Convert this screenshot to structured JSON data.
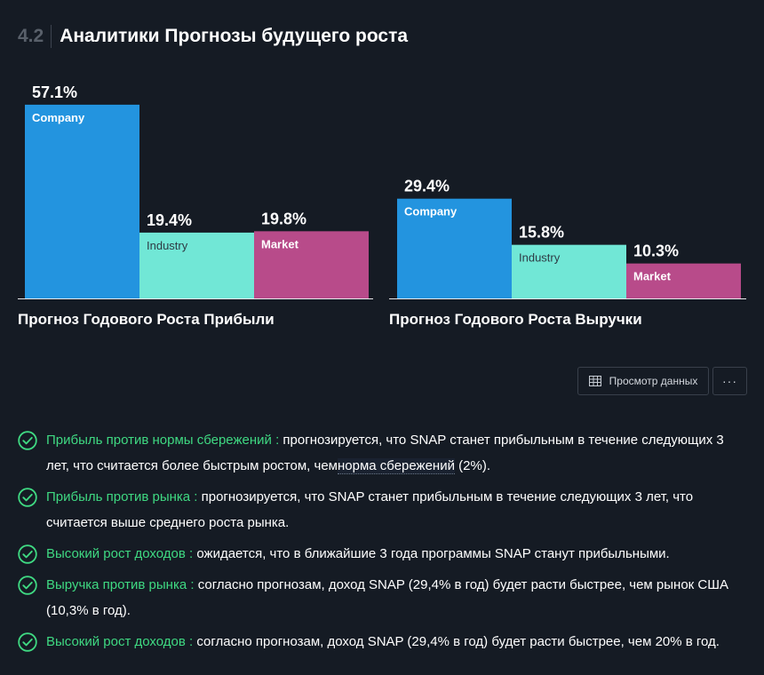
{
  "section": {
    "number": "4.2",
    "title": "Аналитики Прогнозы будущего роста"
  },
  "chart_data": [
    {
      "type": "bar",
      "title": "Прогноз Годового Роста Прибыли",
      "categories": [
        "Company",
        "Industry",
        "Market"
      ],
      "values": [
        57.1,
        19.4,
        19.8
      ],
      "value_labels": [
        "57.1%",
        "19.4%",
        "19.8%"
      ],
      "colors": [
        "#2394df",
        "#71e7d6",
        "#b84b8a"
      ],
      "category_label_colors": [
        "#ffffff",
        "#2e3a44",
        "#ffffff"
      ],
      "grid": false
    },
    {
      "type": "bar",
      "title": "Прогноз Годового Роста Выручки",
      "categories": [
        "Company",
        "Industry",
        "Market"
      ],
      "values": [
        29.4,
        15.8,
        10.3
      ],
      "value_labels": [
        "29.4%",
        "15.8%",
        "10.3%"
      ],
      "colors": [
        "#2394df",
        "#71e7d6",
        "#b84b8a"
      ],
      "category_label_colors": [
        "#ffffff",
        "#2e3a44",
        "#ffffff"
      ],
      "grid": false
    }
  ],
  "toolbar": {
    "view_data_label": "Просмотр данных",
    "more_label": "···"
  },
  "checks": [
    {
      "label": "Прибыль против нормы сбережений :",
      "text": " прогнозируется, что SNAP станет прибыльным в течение следующих 3 лет, что считается более быстрым ростом, чем",
      "link": "норма сбережений",
      "after": " (2%).",
      "icon": "check-circle-icon"
    },
    {
      "label": "Прибыль против рынка :",
      "text": " прогнозируется, что SNAP станет прибыльным в течение следующих 3 лет, что считается выше среднего роста рынка.",
      "icon": "check-circle-icon"
    },
    {
      "label": "Высокий рост доходов :",
      "text": " ожидается, что в ближайшие 3 года программы SNAP станут прибыльными.",
      "icon": "check-circle-icon"
    },
    {
      "label": "Выручка против рынка :",
      "text": " согласно прогнозам, доход SNAP (29,4% в год) будет расти быстрее, чем рынок США (10,3% в год).",
      "icon": "check-circle-icon"
    },
    {
      "label": "Высокий рост доходов :",
      "text": " согласно прогнозам, доход SNAP (29,4% в год) будет расти быстрее, чем 20% в год.",
      "icon": "check-circle-icon"
    }
  ]
}
